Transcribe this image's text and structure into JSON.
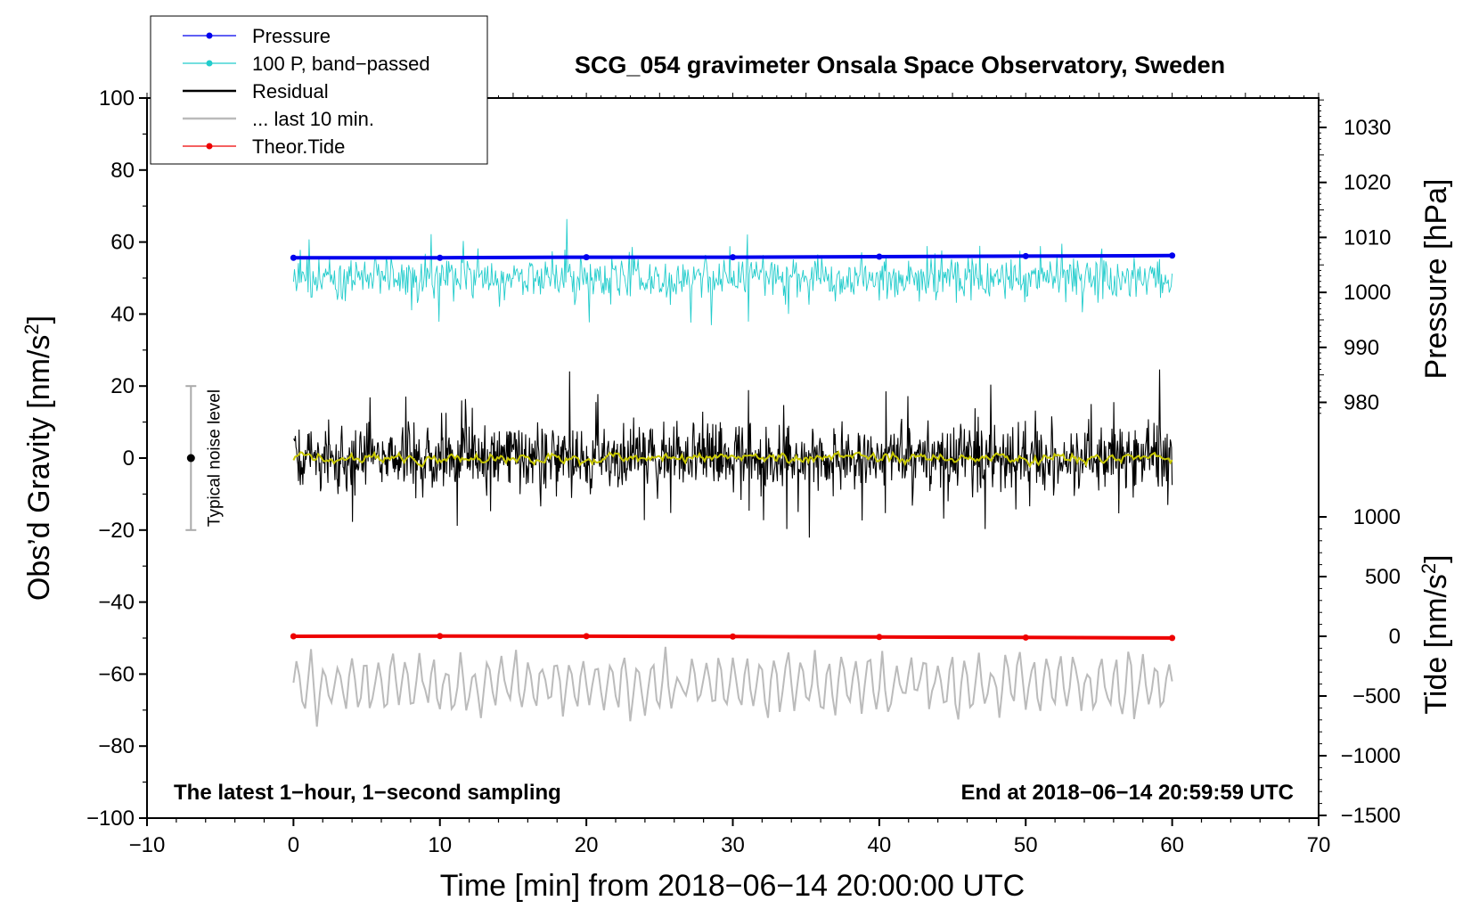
{
  "chart_data": {
    "type": "line",
    "title": "SCG_054 gravimeter Onsala Space Observatory, Sweden",
    "xlabel": "Time [min] from 2018−06−14 20:00:00 UTC",
    "ylabel_left": "Obs’d Gravity [nm/s²]",
    "ylabel_left_parts": {
      "main": "Obs’d Gravity [nm/s",
      "sup": "2",
      "end": "]"
    },
    "ylabel_pressure": "Pressure [hPa]",
    "ylabel_tide": "Tide [nm/s²]",
    "ylabel_tide_parts": {
      "main": "Tide [nm/s",
      "sup": "2",
      "end": "]"
    },
    "xlim": [
      -10,
      70
    ],
    "ylim_left": [
      -100,
      100
    ],
    "x_ticks": [
      -10,
      0,
      10,
      20,
      30,
      40,
      50,
      60,
      70
    ],
    "x_tick_labels": [
      "−10",
      "0",
      "10",
      "20",
      "30",
      "40",
      "50",
      "60",
      "70"
    ],
    "y_ticks_left": [
      -100,
      -80,
      -60,
      -40,
      -20,
      0,
      20,
      40,
      60,
      80,
      100
    ],
    "y_tick_labels_left": [
      "−100",
      "−80",
      "−60",
      "−40",
      "−20",
      "0",
      "20",
      "40",
      "60",
      "80",
      "100"
    ],
    "pressure_axis": {
      "ticks": [
        980,
        990,
        1000,
        1010,
        1020,
        1030
      ],
      "tick_labels": [
        "980",
        "990",
        "1000",
        "1010",
        "1020",
        "1030"
      ]
    },
    "tide_axis": {
      "ticks": [
        -1500,
        -1000,
        -500,
        0,
        500,
        1000
      ],
      "tick_labels": [
        "−1500",
        "−1000",
        "−500",
        "0",
        "500",
        "1000"
      ]
    },
    "legend": {
      "position": "top-left",
      "entries": [
        {
          "label": "Pressure",
          "color": "#0000ee",
          "marker": "dot"
        },
        {
          "label": "100 P, band−passed",
          "color": "#22cccc",
          "marker": "dot"
        },
        {
          "label": "Residual",
          "color": "#000000",
          "marker": "none"
        },
        {
          "label": "... last 10 min.",
          "color": "#bbbbbb",
          "marker": "none"
        },
        {
          "label": "Theor.Tide",
          "color": "#ee0000",
          "marker": "dot"
        }
      ]
    },
    "series": [
      {
        "name": "Pressure",
        "axis": "pressure",
        "color": "#0000ee",
        "x": [
          0,
          10,
          20,
          30,
          40,
          50,
          60
        ],
        "values": [
          1006.3,
          1006.3,
          1006.4,
          1006.4,
          1006.5,
          1006.6,
          1006.7
        ]
      },
      {
        "name": "100 P, band−passed",
        "axis": "left",
        "color": "#22cccc",
        "center": 50,
        "amplitude": 5
      },
      {
        "name": "Residual",
        "axis": "left",
        "color": "#000000",
        "center": 0,
        "amplitude": 9
      },
      {
        "name": "Residual smoothed",
        "axis": "left",
        "color": "#c8c800",
        "center": 0,
        "amplitude": 1
      },
      {
        "name": "... last 10 min.",
        "axis": "left",
        "color": "#bbbbbb",
        "center": -63,
        "amplitude": 8
      },
      {
        "name": "Theor.Tide",
        "axis": "tide",
        "color": "#ee0000",
        "x": [
          0,
          10,
          20,
          30,
          40,
          50,
          60
        ],
        "values": [
          0,
          2,
          1,
          -2,
          -6,
          -10,
          -14
        ]
      }
    ],
    "noise_indicator": {
      "label": "Typical noise level",
      "x": -7,
      "y_center": 0,
      "y_range": [
        -20,
        20
      ]
    },
    "annotations": {
      "bottom_left": "The latest 1−hour, 1−second sampling",
      "bottom_right": "End at 2018−06−14 20:59:59 UTC"
    }
  },
  "colors": {
    "pressure": "#0000ee",
    "bandpassed": "#22cccc",
    "residual": "#000000",
    "smoothed": "#c8c800",
    "last10": "#bbbbbb",
    "tide": "#ee0000",
    "noise": "#aaaaaa"
  }
}
